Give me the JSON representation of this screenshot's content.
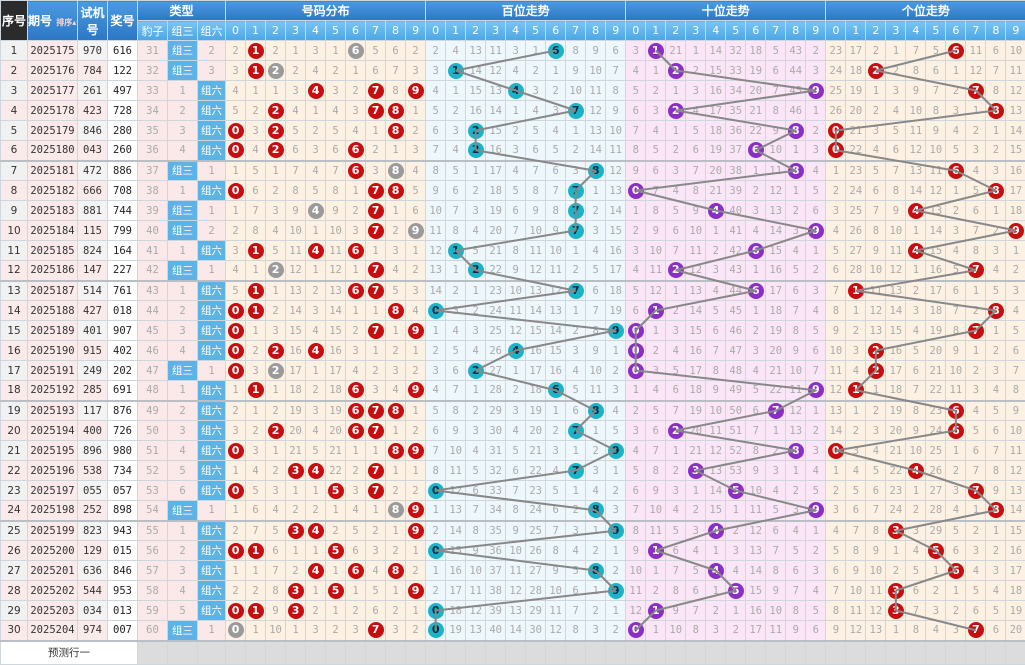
{
  "header": {
    "seq": "序号",
    "issue": "期号",
    "sort": "排序",
    "test": "试机号",
    "draw": "奖号",
    "type_group": "类型",
    "types": [
      "豹子",
      "组三",
      "组六"
    ],
    "dist_group": "号码分布",
    "bai_group": "百位走势",
    "shi_group": "十位走势",
    "ge_group": "个位走势",
    "digits": [
      "0",
      "1",
      "2",
      "3",
      "4",
      "5",
      "6",
      "7",
      "8",
      "9"
    ]
  },
  "rows": [
    {
      "seq": "1",
      "issue": "2025175",
      "test": "970",
      "draw": "616"
    },
    {
      "seq": "2",
      "issue": "2025176",
      "test": "784",
      "draw": "122"
    },
    {
      "seq": "3",
      "issue": "2025177",
      "test": "261",
      "draw": "497"
    },
    {
      "seq": "4",
      "issue": "2025178",
      "test": "423",
      "draw": "728"
    },
    {
      "seq": "5",
      "issue": "2025179",
      "test": "846",
      "draw": "280"
    },
    {
      "seq": "6",
      "issue": "2025180",
      "test": "043",
      "draw": "260"
    },
    {
      "seq": "7",
      "issue": "2025181",
      "test": "472",
      "draw": "886"
    },
    {
      "seq": "8",
      "issue": "2025182",
      "test": "666",
      "draw": "708"
    },
    {
      "seq": "9",
      "issue": "2025183",
      "test": "881",
      "draw": "744"
    },
    {
      "seq": "10",
      "issue": "2025184",
      "test": "115",
      "draw": "799"
    },
    {
      "seq": "11",
      "issue": "2025185",
      "test": "824",
      "draw": "164"
    },
    {
      "seq": "12",
      "issue": "2025186",
      "test": "147",
      "draw": "227"
    },
    {
      "seq": "13",
      "issue": "2025187",
      "test": "514",
      "draw": "761"
    },
    {
      "seq": "14",
      "issue": "2025188",
      "test": "427",
      "draw": "018"
    },
    {
      "seq": "15",
      "issue": "2025189",
      "test": "401",
      "draw": "907"
    },
    {
      "seq": "16",
      "issue": "2025190",
      "test": "915",
      "draw": "402"
    },
    {
      "seq": "17",
      "issue": "2025191",
      "test": "249",
      "draw": "202"
    },
    {
      "seq": "18",
      "issue": "2025192",
      "test": "285",
      "draw": "691"
    },
    {
      "seq": "19",
      "issue": "2025193",
      "test": "117",
      "draw": "876"
    },
    {
      "seq": "20",
      "issue": "2025194",
      "test": "400",
      "draw": "726"
    },
    {
      "seq": "21",
      "issue": "2025195",
      "test": "896",
      "draw": "980"
    },
    {
      "seq": "22",
      "issue": "2025196",
      "test": "538",
      "draw": "734"
    },
    {
      "seq": "23",
      "issue": "2025197",
      "test": "055",
      "draw": "057"
    },
    {
      "seq": "24",
      "issue": "2025198",
      "test": "252",
      "draw": "898"
    },
    {
      "seq": "25",
      "issue": "2025199",
      "test": "823",
      "draw": "943"
    },
    {
      "seq": "26",
      "issue": "2025200",
      "test": "129",
      "draw": "015"
    },
    {
      "seq": "27",
      "issue": "2025201",
      "test": "636",
      "draw": "846"
    },
    {
      "seq": "28",
      "issue": "2025202",
      "test": "544",
      "draw": "953"
    },
    {
      "seq": "29",
      "issue": "2025203",
      "test": "034",
      "draw": "013"
    },
    {
      "seq": "30",
      "issue": "2025204",
      "test": "974",
      "draw": "007"
    }
  ],
  "first_row_omission": {
    "baozi": 31,
    "zu3": null,
    "zu6": 2,
    "dist": [
      2,
      null,
      2,
      1,
      3,
      1,
      null,
      5,
      6,
      2
    ],
    "bai": [
      2,
      4,
      13,
      11,
      3,
      1,
      null,
      8,
      9,
      6
    ],
    "shi": [
      3,
      null,
      21,
      1,
      14,
      32,
      18,
      5,
      43,
      2
    ],
    "ge": [
      23,
      17,
      2,
      1,
      7,
      5,
      null,
      11,
      6,
      10
    ]
  },
  "footer": {
    "predict_label": "预测行一"
  },
  "colors": {
    "header": "#2c76c4",
    "subheader": "#4aa6e6",
    "badge": "#5cb3e6",
    "dist_hit": "#c80d10",
    "dist_repeat": "#9a9a9a",
    "bai_ball": "#1cb3c9",
    "shi_ball": "#8a2fc4",
    "ge_ball": "#c80d10",
    "line": "#888888"
  }
}
